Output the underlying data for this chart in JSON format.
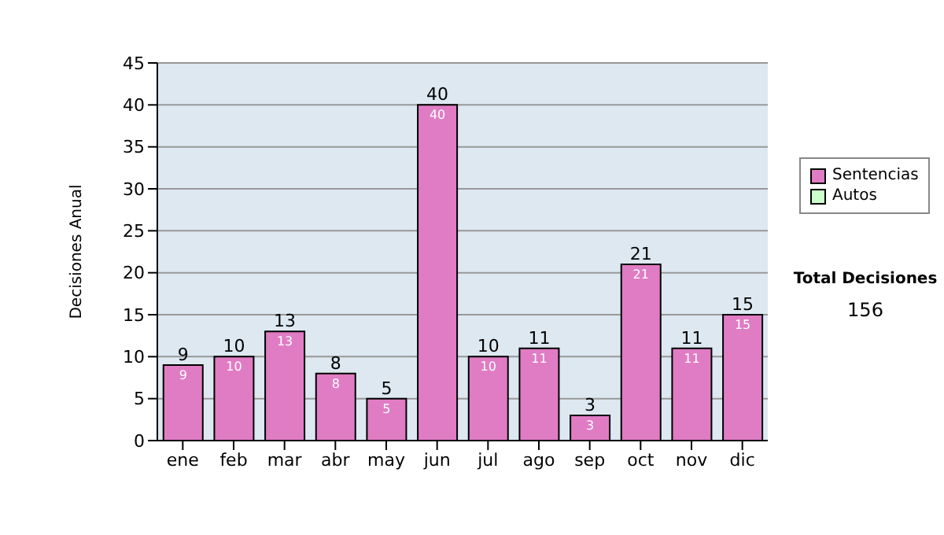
{
  "chart_data": {
    "type": "bar",
    "stacked": true,
    "ylabel": "Decisiones Anual",
    "categories": [
      "ene",
      "feb",
      "mar",
      "abr",
      "may",
      "jun",
      "jul",
      "ago",
      "sep",
      "oct",
      "nov",
      "dic"
    ],
    "series": [
      {
        "name": "Sentencias",
        "color": "#e07cc4",
        "values": [
          9,
          10,
          13,
          8,
          5,
          40,
          10,
          11,
          3,
          21,
          11,
          15
        ],
        "value_labels": [
          "9",
          "10",
          "13",
          "8",
          "5",
          "40",
          "10",
          "11",
          "3",
          "21",
          "11",
          "15"
        ]
      },
      {
        "name": "Autos",
        "color": "#ccffcc",
        "values": [
          0,
          0,
          0,
          0,
          0,
          0,
          0,
          0,
          0,
          0,
          0,
          0
        ]
      }
    ],
    "totals": [
      "9",
      "10",
      "13",
      "8",
      "5",
      "40",
      "10",
      "11",
      "3",
      "21",
      "11",
      "15"
    ],
    "ylim": [
      0,
      45
    ],
    "yticks": [
      0,
      5,
      10,
      15,
      20,
      25,
      30,
      35,
      40,
      45
    ],
    "grid": "y",
    "legend": "right",
    "annotations": [
      "Total Decisiones",
      "156"
    ]
  }
}
